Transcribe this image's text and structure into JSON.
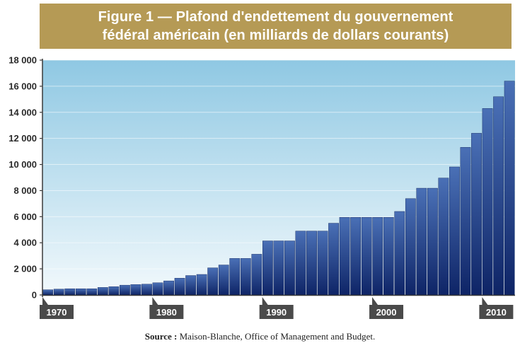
{
  "title": {
    "line1": "Figure 1 — Plafond d'endettement du gouvernement",
    "line2": "fédéral américain (en milliards de dollars courants)"
  },
  "source": {
    "label": "Source :",
    "text": " Maison-Blanche, Office of Management and Budget."
  },
  "colors": {
    "banner": "#b59a55",
    "bar_top": "#4a70b6",
    "bar_bottom": "#0e2466",
    "plot_top": "#8fc8e3",
    "plot_bottom": "#f2f9fc",
    "xtick_bg": "#4a4a4a"
  },
  "chart_data": {
    "type": "bar",
    "title": "Figure 1 — Plafond d'endettement du gouvernement fédéral américain (en milliards de dollars courants)",
    "xlabel": "",
    "ylabel": "",
    "ylim": [
      0,
      18000
    ],
    "yticks": [
      "0",
      "2 000",
      "4 000",
      "6 000",
      "8 000",
      "10 000",
      "12 000",
      "14 000",
      "16 000",
      "18 000"
    ],
    "ytick_values": [
      0,
      2000,
      4000,
      6000,
      8000,
      10000,
      12000,
      14000,
      16000,
      18000
    ],
    "xticks": [
      "1970",
      "1980",
      "1990",
      "2000",
      "2010"
    ],
    "xtick_values": [
      1970,
      1980,
      1990,
      2000,
      2010
    ],
    "grid": true,
    "categories": [
      1970,
      1971,
      1972,
      1973,
      1974,
      1975,
      1976,
      1977,
      1978,
      1979,
      1980,
      1981,
      1982,
      1983,
      1984,
      1985,
      1986,
      1987,
      1988,
      1989,
      1990,
      1991,
      1992,
      1993,
      1994,
      1995,
      1996,
      1997,
      1998,
      1999,
      2000,
      2001,
      2002,
      2003,
      2004,
      2005,
      2006,
      2007,
      2008,
      2009,
      2010,
      2011,
      2012
    ],
    "values": [
      400,
      450,
      480,
      480,
      480,
      577,
      636,
      752,
      798,
      830,
      935,
      1080,
      1290,
      1490,
      1573,
      2079,
      2300,
      2800,
      2800,
      3123,
      4145,
      4145,
      4145,
      4900,
      4900,
      4900,
      5500,
      5950,
      5950,
      5950,
      5950,
      5950,
      6400,
      7384,
      8184,
      8184,
      8965,
      9815,
      11315,
      12394,
      14294,
      15194,
      16394
    ]
  }
}
